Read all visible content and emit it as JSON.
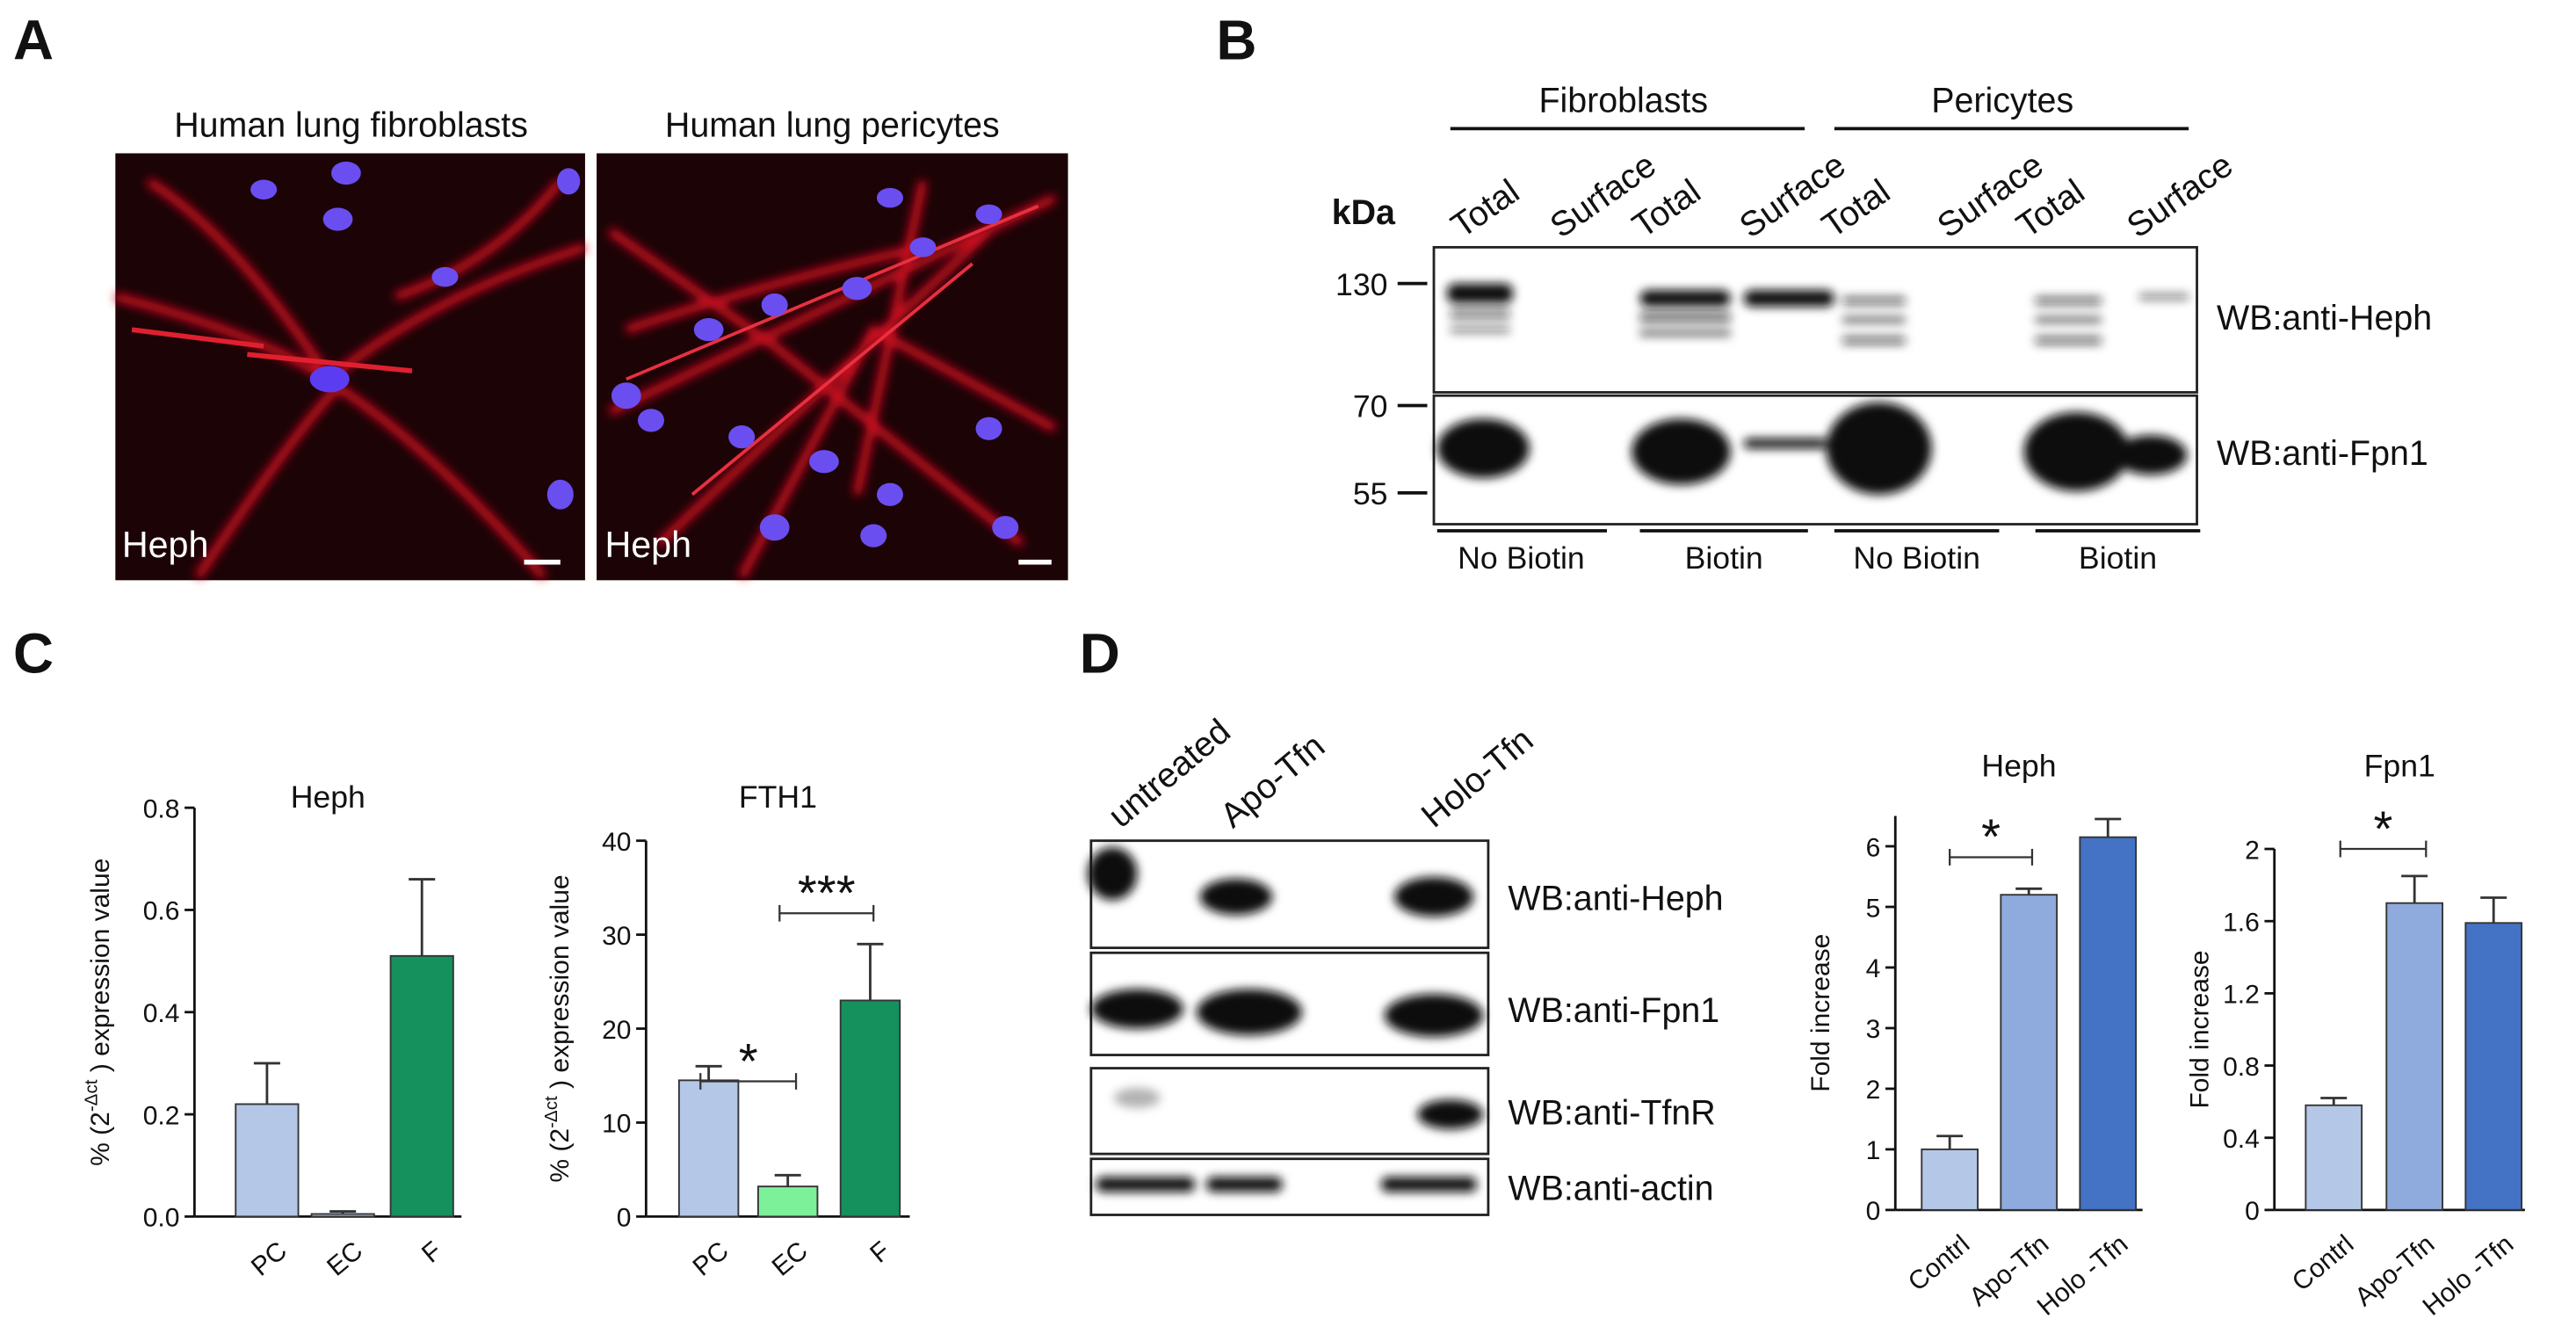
{
  "panel_labels": [
    "A",
    "B",
    "C",
    "D"
  ],
  "panel_a": {
    "titles": [
      "Human lung fibroblasts",
      "Human lung pericytes"
    ],
    "stain_labels": [
      "Heph",
      "Heph"
    ]
  },
  "panel_b": {
    "groups": [
      "Fibroblasts",
      "Pericytes"
    ],
    "unit": "kDa",
    "lanes": [
      "Total",
      "Surface",
      "Total",
      "Surface",
      "Total",
      "Surface",
      "Total",
      "Surface"
    ],
    "markers": [
      "130",
      "70",
      "55"
    ],
    "blots": [
      "WB:anti-Heph",
      "WB:anti-Fpn1"
    ],
    "conditions": [
      "No Biotin",
      "Biotin",
      "No Biotin",
      "Biotin"
    ]
  },
  "panel_d_blot": {
    "lanes": [
      "untreated",
      "Apo-Tfn",
      "Holo-Tfn"
    ],
    "blots": [
      "WB:anti-Heph",
      "WB:anti-Fpn1",
      "WB:anti-TfnR",
      "WB:anti-actin"
    ]
  },
  "chart_data": [
    {
      "type": "bar",
      "title": "Heph",
      "y_label": {
        "text_before": "% (2",
        "superscript": "-Δct",
        "text_after": " ) expression value"
      },
      "categories": [
        "PC",
        "EC",
        "F"
      ],
      "values": [
        0.22,
        0.005,
        0.51
      ],
      "errors": [
        0.08,
        0.005,
        0.15
      ],
      "colors": [
        "#b4c7e7",
        "#b4c7e7",
        "#15915e"
      ],
      "ylim": [
        0,
        0.8
      ],
      "yticks": [
        {
          "value": 0,
          "label": "0.0"
        },
        0.2,
        0.4,
        0.6,
        0.8
      ],
      "annotations": []
    },
    {
      "type": "bar",
      "title": "FTH1",
      "y_label": {
        "text_before": "% (2",
        "superscript": "-Δct",
        "text_after": " ) expression value"
      },
      "categories": [
        "PC",
        "EC",
        "F"
      ],
      "values": [
        14.5,
        3.2,
        23
      ],
      "errors": [
        1.5,
        1.2,
        6
      ],
      "colors": [
        "#b4c7e7",
        "#7df09a",
        "#15915e"
      ],
      "ylim": [
        0,
        40
      ],
      "yticks": [
        0,
        10,
        20,
        30,
        40
      ],
      "annotations": [
        "*",
        "***"
      ]
    },
    {
      "type": "bar",
      "title": "Heph",
      "y_label": "Fold increase",
      "categories": [
        "Contrl",
        "Apo-Tfn",
        "Holo -Tfn"
      ],
      "values": [
        1.0,
        5.2,
        6.15
      ],
      "errors": [
        0.22,
        0.1,
        0.3
      ],
      "colors": [
        "#b4c7e7",
        "#8faadc",
        "#4472c4"
      ],
      "ylim": [
        0,
        6.5
      ],
      "yticks": [
        0,
        1,
        2,
        3,
        4,
        5,
        6
      ],
      "annotations": [
        "*"
      ]
    },
    {
      "type": "bar",
      "title": "Fpn1",
      "y_label": "Fold increase",
      "categories": [
        "Contrl",
        "Apo-Tfn",
        "Holo -Tfn"
      ],
      "values": [
        0.58,
        1.7,
        1.59
      ],
      "errors": [
        0.04,
        0.15,
        0.14
      ],
      "colors": [
        "#b4c7e7",
        "#8faadc",
        "#4472c4"
      ],
      "ylim": [
        0,
        2
      ],
      "yticks": [
        0,
        0.4,
        0.8,
        1.2,
        1.6,
        2
      ],
      "annotations": [
        "*"
      ]
    }
  ]
}
